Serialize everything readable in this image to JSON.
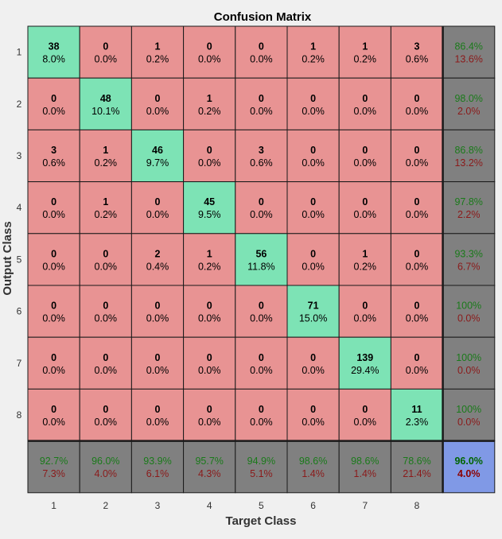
{
  "chart_data": {
    "type": "heatmap",
    "title": "Confusion Matrix",
    "xlabel": "Target Class",
    "ylabel": "Output Class",
    "x_ticks": [
      "1",
      "2",
      "3",
      "4",
      "5",
      "6",
      "7",
      "8"
    ],
    "y_ticks": [
      "1",
      "2",
      "3",
      "4",
      "5",
      "6",
      "7",
      "8"
    ],
    "cells": [
      [
        {
          "count": "38",
          "pct": "8.0%"
        },
        {
          "count": "0",
          "pct": "0.0%"
        },
        {
          "count": "1",
          "pct": "0.2%"
        },
        {
          "count": "0",
          "pct": "0.0%"
        },
        {
          "count": "0",
          "pct": "0.0%"
        },
        {
          "count": "1",
          "pct": "0.2%"
        },
        {
          "count": "1",
          "pct": "0.2%"
        },
        {
          "count": "3",
          "pct": "0.6%"
        }
      ],
      [
        {
          "count": "0",
          "pct": "0.0%"
        },
        {
          "count": "48",
          "pct": "10.1%"
        },
        {
          "count": "0",
          "pct": "0.0%"
        },
        {
          "count": "1",
          "pct": "0.2%"
        },
        {
          "count": "0",
          "pct": "0.0%"
        },
        {
          "count": "0",
          "pct": "0.0%"
        },
        {
          "count": "0",
          "pct": "0.0%"
        },
        {
          "count": "0",
          "pct": "0.0%"
        }
      ],
      [
        {
          "count": "3",
          "pct": "0.6%"
        },
        {
          "count": "1",
          "pct": "0.2%"
        },
        {
          "count": "46",
          "pct": "9.7%"
        },
        {
          "count": "0",
          "pct": "0.0%"
        },
        {
          "count": "3",
          "pct": "0.6%"
        },
        {
          "count": "0",
          "pct": "0.0%"
        },
        {
          "count": "0",
          "pct": "0.0%"
        },
        {
          "count": "0",
          "pct": "0.0%"
        }
      ],
      [
        {
          "count": "0",
          "pct": "0.0%"
        },
        {
          "count": "1",
          "pct": "0.2%"
        },
        {
          "count": "0",
          "pct": "0.0%"
        },
        {
          "count": "45",
          "pct": "9.5%"
        },
        {
          "count": "0",
          "pct": "0.0%"
        },
        {
          "count": "0",
          "pct": "0.0%"
        },
        {
          "count": "0",
          "pct": "0.0%"
        },
        {
          "count": "0",
          "pct": "0.0%"
        }
      ],
      [
        {
          "count": "0",
          "pct": "0.0%"
        },
        {
          "count": "0",
          "pct": "0.0%"
        },
        {
          "count": "2",
          "pct": "0.4%"
        },
        {
          "count": "1",
          "pct": "0.2%"
        },
        {
          "count": "56",
          "pct": "11.8%"
        },
        {
          "count": "0",
          "pct": "0.0%"
        },
        {
          "count": "1",
          "pct": "0.2%"
        },
        {
          "count": "0",
          "pct": "0.0%"
        }
      ],
      [
        {
          "count": "0",
          "pct": "0.0%"
        },
        {
          "count": "0",
          "pct": "0.0%"
        },
        {
          "count": "0",
          "pct": "0.0%"
        },
        {
          "count": "0",
          "pct": "0.0%"
        },
        {
          "count": "0",
          "pct": "0.0%"
        },
        {
          "count": "71",
          "pct": "15.0%"
        },
        {
          "count": "0",
          "pct": "0.0%"
        },
        {
          "count": "0",
          "pct": "0.0%"
        }
      ],
      [
        {
          "count": "0",
          "pct": "0.0%"
        },
        {
          "count": "0",
          "pct": "0.0%"
        },
        {
          "count": "0",
          "pct": "0.0%"
        },
        {
          "count": "0",
          "pct": "0.0%"
        },
        {
          "count": "0",
          "pct": "0.0%"
        },
        {
          "count": "0",
          "pct": "0.0%"
        },
        {
          "count": "139",
          "pct": "29.4%"
        },
        {
          "count": "0",
          "pct": "0.0%"
        }
      ],
      [
        {
          "count": "0",
          "pct": "0.0%"
        },
        {
          "count": "0",
          "pct": "0.0%"
        },
        {
          "count": "0",
          "pct": "0.0%"
        },
        {
          "count": "0",
          "pct": "0.0%"
        },
        {
          "count": "0",
          "pct": "0.0%"
        },
        {
          "count": "0",
          "pct": "0.0%"
        },
        {
          "count": "0",
          "pct": "0.0%"
        },
        {
          "count": "11",
          "pct": "2.3%"
        }
      ]
    ],
    "row_summary": [
      {
        "correct": "86.4%",
        "error": "13.6%"
      },
      {
        "correct": "98.0%",
        "error": "2.0%"
      },
      {
        "correct": "86.8%",
        "error": "13.2%"
      },
      {
        "correct": "97.8%",
        "error": "2.2%"
      },
      {
        "correct": "93.3%",
        "error": "6.7%"
      },
      {
        "correct": "100%",
        "error": "0.0%"
      },
      {
        "correct": "100%",
        "error": "0.0%"
      },
      {
        "correct": "100%",
        "error": "0.0%"
      }
    ],
    "col_summary": [
      {
        "correct": "92.7%",
        "error": "7.3%"
      },
      {
        "correct": "96.0%",
        "error": "4.0%"
      },
      {
        "correct": "93.9%",
        "error": "6.1%"
      },
      {
        "correct": "95.7%",
        "error": "4.3%"
      },
      {
        "correct": "94.9%",
        "error": "5.1%"
      },
      {
        "correct": "98.6%",
        "error": "1.4%"
      },
      {
        "correct": "98.6%",
        "error": "1.4%"
      },
      {
        "correct": "78.6%",
        "error": "21.4%"
      }
    ],
    "overall": {
      "correct": "96.0%",
      "error": "4.0%"
    },
    "colors": {
      "diagonal": "#7de3b5",
      "off_diagonal": "#e89393",
      "summary": "#808080",
      "overall": "#8099e6",
      "correct_text": "#1a7a1a",
      "error_text": "#8b1a1a",
      "overall_correct_text": "#006400",
      "overall_error_text": "#8b0000",
      "background": "#f0f0f0"
    }
  }
}
